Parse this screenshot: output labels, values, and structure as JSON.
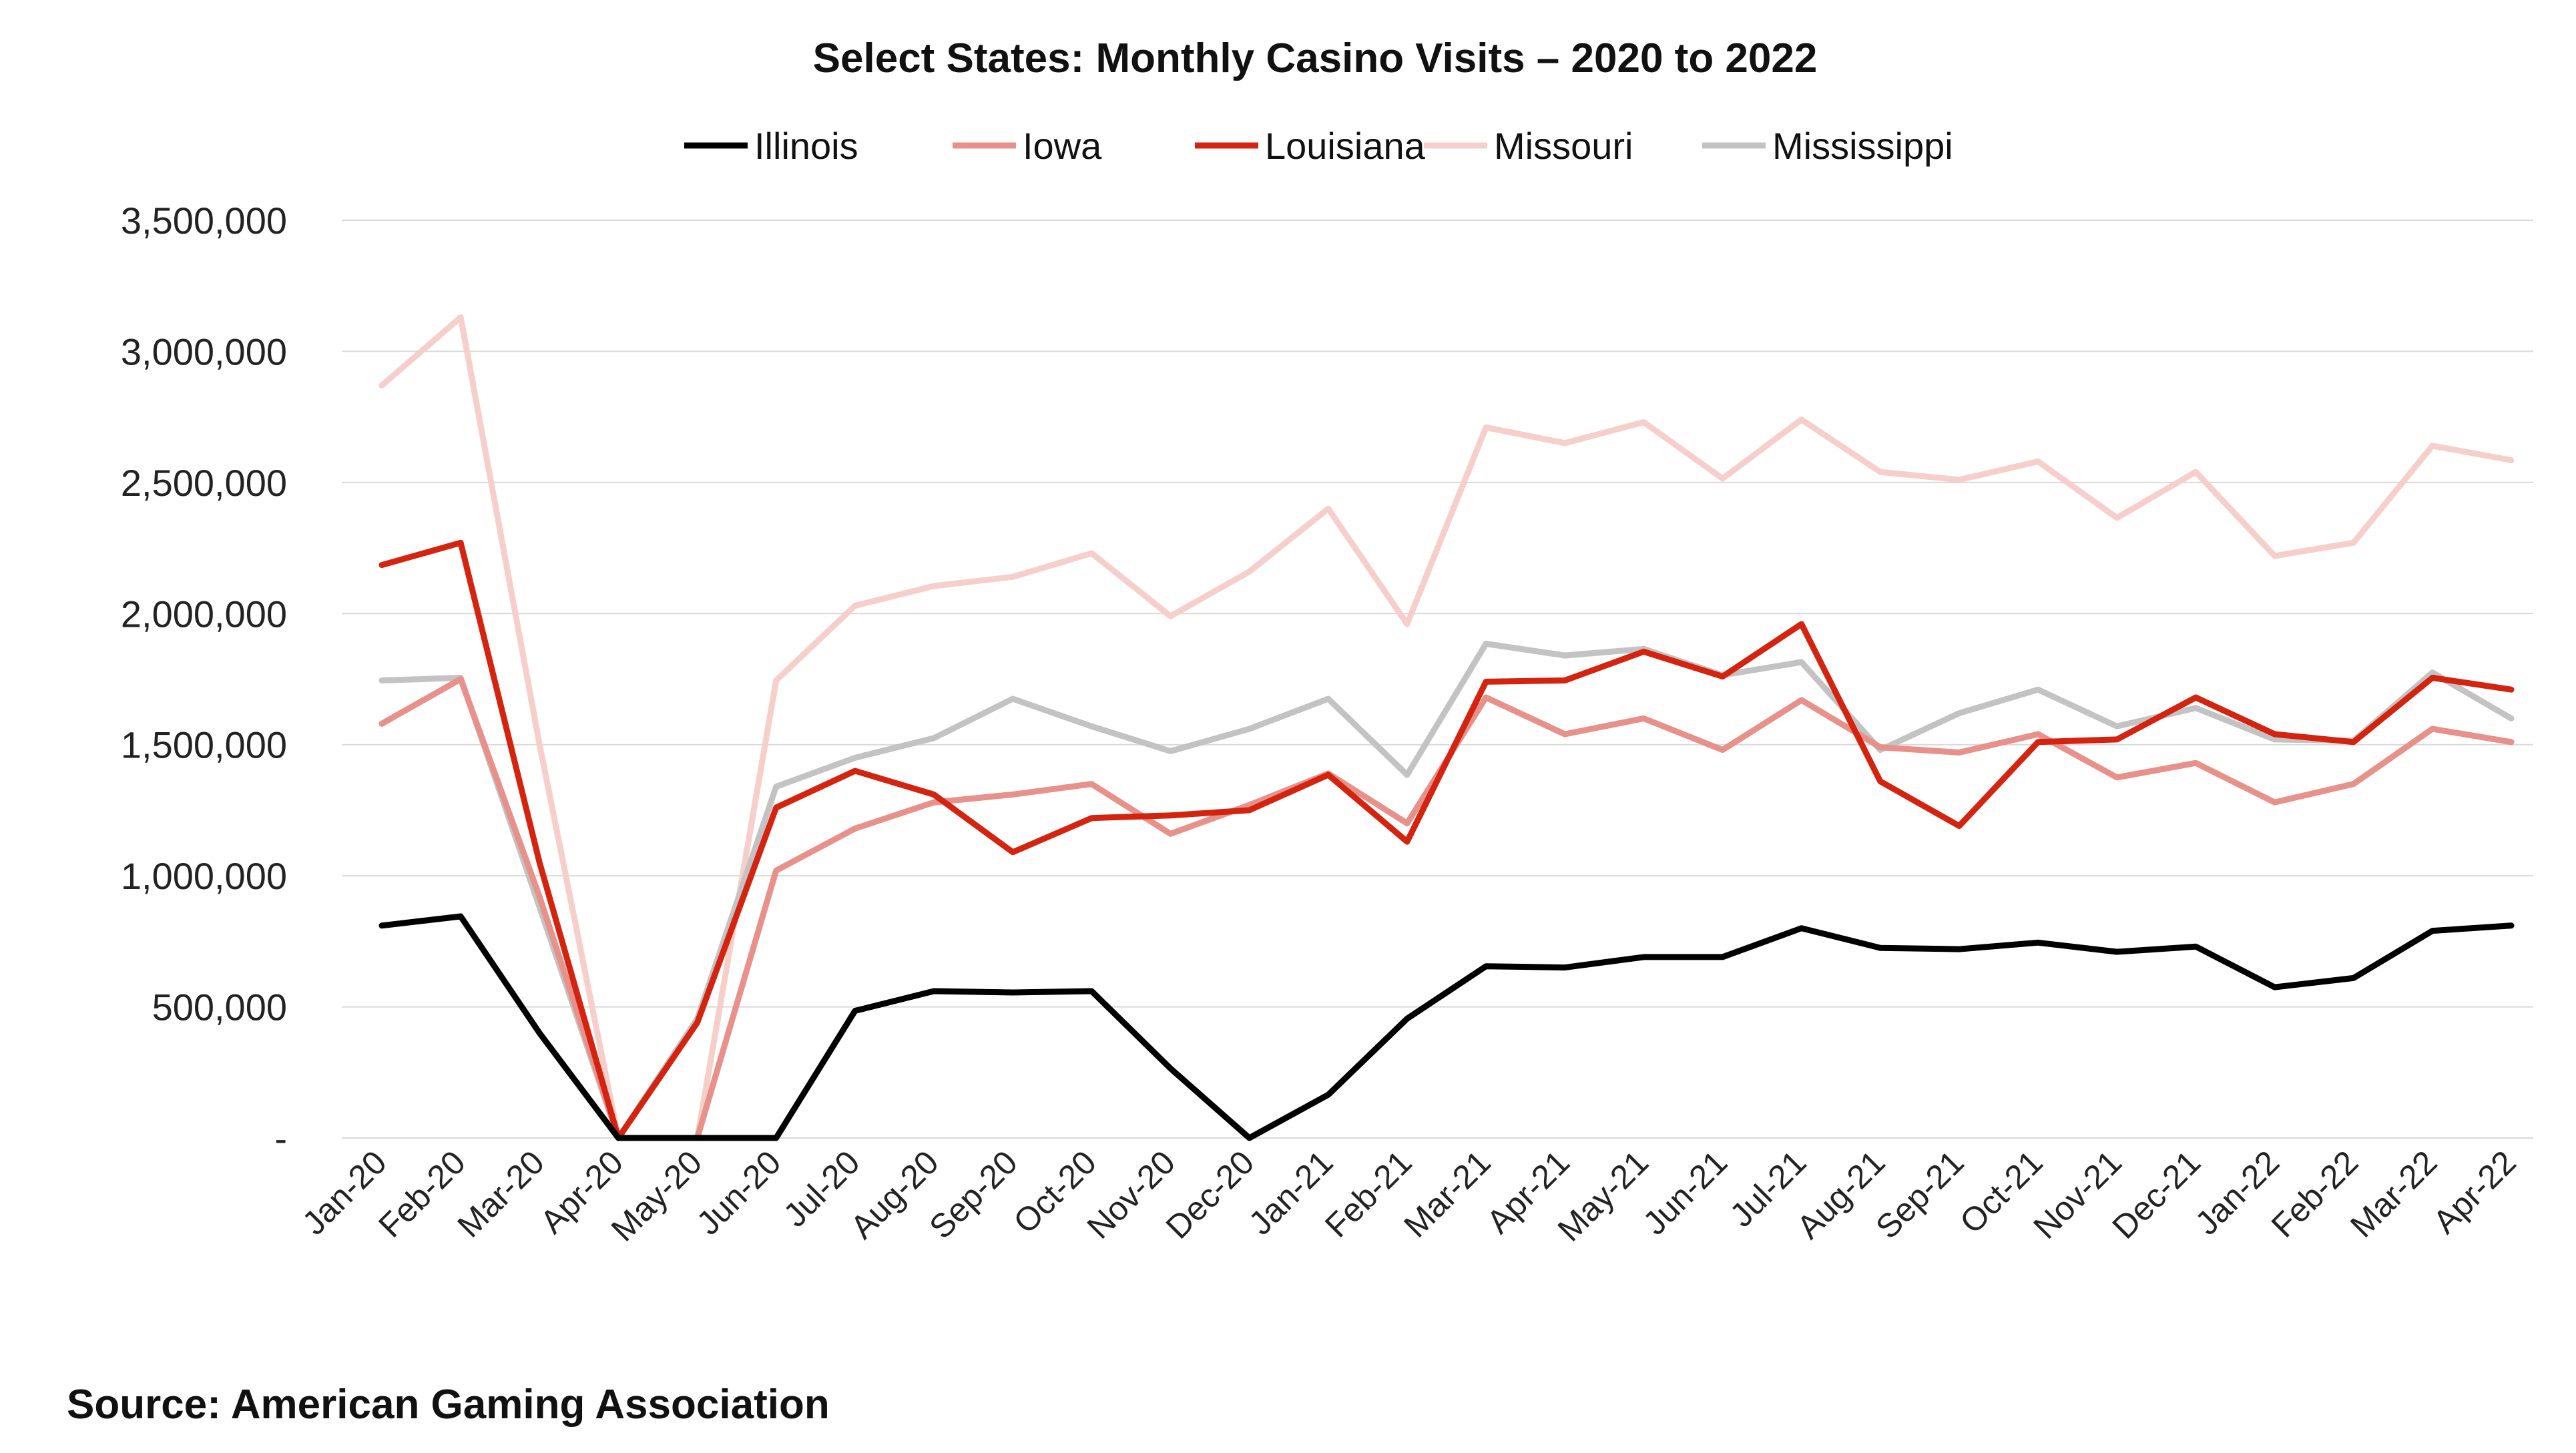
{
  "chart_data": {
    "type": "line",
    "title": "Select States: Monthly Casino Visits – 2020 to 2022",
    "source": "Source: American Gaming Association",
    "ylim": [
      0,
      3500000
    ],
    "yticks": [
      0,
      500000,
      1000000,
      1500000,
      2000000,
      2500000,
      3000000,
      3500000
    ],
    "ytick_labels": [
      "-",
      "500,000",
      "1,000,000",
      "1,500,000",
      "2,000,000",
      "2,500,000",
      "3,000,000",
      "3,500,000"
    ],
    "grid": true,
    "legend_position": "top",
    "categories": [
      "Jan-20",
      "Feb-20",
      "Mar-20",
      "Apr-20",
      "May-20",
      "Jun-20",
      "Jul-20",
      "Aug-20",
      "Sep-20",
      "Oct-20",
      "Nov-20",
      "Dec-20",
      "Jan-21",
      "Feb-21",
      "Mar-21",
      "Apr-21",
      "May-21",
      "Jun-21",
      "Jul-21",
      "Aug-21",
      "Sep-21",
      "Oct-21",
      "Nov-21",
      "Dec-21",
      "Jan-22",
      "Feb-22",
      "Mar-22",
      "Apr-22"
    ],
    "series": [
      {
        "name": "Illinois",
        "color": "#000000",
        "values": [
          810000,
          845000,
          400000,
          0,
          0,
          0,
          485000,
          560000,
          555000,
          560000,
          265000,
          0,
          165000,
          455000,
          655000,
          650000,
          690000,
          690000,
          800000,
          725000,
          720000,
          745000,
          710000,
          730000,
          575000,
          610000,
          790000,
          810000
        ]
      },
      {
        "name": "Iowa",
        "color": "#e8908a",
        "values": [
          1580000,
          1750000,
          920000,
          0,
          0,
          1020000,
          1180000,
          1280000,
          1310000,
          1350000,
          1160000,
          1270000,
          1390000,
          1200000,
          1680000,
          1540000,
          1600000,
          1480000,
          1670000,
          1490000,
          1470000,
          1540000,
          1375000,
          1430000,
          1280000,
          1350000,
          1560000,
          1510000
        ]
      },
      {
        "name": "Louisiana",
        "color": "#d4230f",
        "values": [
          2185000,
          2270000,
          1050000,
          0,
          440000,
          1260000,
          1400000,
          1310000,
          1090000,
          1220000,
          1230000,
          1250000,
          1385000,
          1130000,
          1740000,
          1745000,
          1855000,
          1760000,
          1960000,
          1360000,
          1190000,
          1510000,
          1520000,
          1680000,
          1540000,
          1510000,
          1755000,
          1710000
        ]
      },
      {
        "name": "Missouri",
        "color": "#f6cfcb",
        "values": [
          2870000,
          3130000,
          1500000,
          0,
          0,
          1745000,
          2030000,
          2105000,
          2140000,
          2230000,
          1990000,
          2160000,
          2400000,
          1960000,
          2710000,
          2650000,
          2730000,
          2515000,
          2740000,
          2540000,
          2510000,
          2580000,
          2365000,
          2540000,
          2220000,
          2270000,
          2640000,
          2585000
        ]
      },
      {
        "name": "Mississippi",
        "color": "#c3c3c3",
        "values": [
          1745000,
          1755000,
          880000,
          0,
          455000,
          1340000,
          1450000,
          1525000,
          1675000,
          1570000,
          1475000,
          1560000,
          1675000,
          1385000,
          1885000,
          1840000,
          1865000,
          1765000,
          1815000,
          1480000,
          1620000,
          1710000,
          1570000,
          1640000,
          1520000,
          1515000,
          1775000,
          1600000
        ]
      }
    ]
  }
}
